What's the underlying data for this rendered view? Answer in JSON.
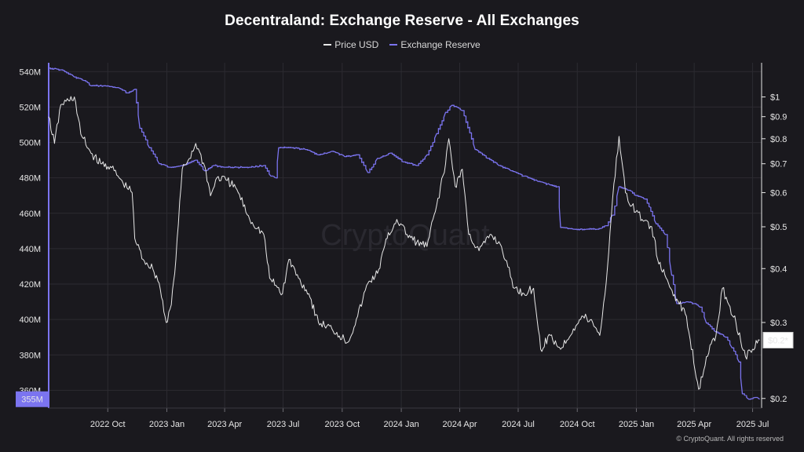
{
  "title": "Decentraland: Exchange Reserve - All Exchanges",
  "legend": [
    {
      "label": "Price USD",
      "color": "#e8e8e8"
    },
    {
      "label": "Exchange Reserve",
      "color": "#7b74f0"
    }
  ],
  "watermark": "CryptoQuant",
  "footer": "© CryptoQuant. All rights reserved",
  "colors": {
    "background": "#1a191e",
    "price": "#e8e8e8",
    "reserve": "#7b74f0",
    "grid": "#2c2b31"
  },
  "chart_data": {
    "type": "line",
    "title": "Decentraland: Exchange Reserve - All Exchanges",
    "x_range": [
      "2022-07-01",
      "2025-07-15"
    ],
    "x_ticks": [
      {
        "label": "2022 Oct",
        "date": "2022-10-01"
      },
      {
        "label": "2023 Jan",
        "date": "2023-01-01"
      },
      {
        "label": "2023 Apr",
        "date": "2023-04-01"
      },
      {
        "label": "2023 Jul",
        "date": "2023-07-01"
      },
      {
        "label": "2023 Oct",
        "date": "2023-10-01"
      },
      {
        "label": "2024 Jan",
        "date": "2024-01-01"
      },
      {
        "label": "2024 Apr",
        "date": "2024-04-01"
      },
      {
        "label": "2024 Jul",
        "date": "2024-07-01"
      },
      {
        "label": "2024 Oct",
        "date": "2024-10-01"
      },
      {
        "label": "2025 Jan",
        "date": "2025-01-01"
      },
      {
        "label": "2025 Apr",
        "date": "2025-04-01"
      },
      {
        "label": "2025 Jul",
        "date": "2025-07-01"
      }
    ],
    "y_left": {
      "scale": "linear",
      "range": [
        350,
        545
      ],
      "unit": "M",
      "ticks": [
        {
          "label": "360M",
          "value": 360
        },
        {
          "label": "380M",
          "value": 380
        },
        {
          "label": "400M",
          "value": 400
        },
        {
          "label": "420M",
          "value": 420
        },
        {
          "label": "440M",
          "value": 440
        },
        {
          "label": "460M",
          "value": 460
        },
        {
          "label": "480M",
          "value": 480
        },
        {
          "label": "500M",
          "value": 500
        },
        {
          "label": "520M",
          "value": 520
        },
        {
          "label": "540M",
          "value": 540
        }
      ],
      "current_label": "355M",
      "current_value": 355
    },
    "y_right": {
      "scale": "log",
      "range": [
        0.19,
        1.2
      ],
      "ticks": [
        {
          "label": "$1",
          "value": 1.0
        },
        {
          "label": "$0.9",
          "value": 0.9
        },
        {
          "label": "$0.8",
          "value": 0.8
        },
        {
          "label": "$0.7",
          "value": 0.7
        },
        {
          "label": "$0.6",
          "value": 0.6
        },
        {
          "label": "$0.5",
          "value": 0.5
        },
        {
          "label": "$0.4",
          "value": 0.4
        },
        {
          "label": "$0.3",
          "value": 0.3
        },
        {
          "label": "$0.2",
          "value": 0.2
        }
      ],
      "current_label": "$0.2*",
      "current_value": 0.273
    },
    "grid": true,
    "legend_position": "top-center",
    "series": [
      {
        "name": "Exchange Reserve",
        "axis": "left",
        "color": "#7b74f0",
        "points": [
          [
            "2022-07-01",
            542
          ],
          [
            "2022-07-20",
            541
          ],
          [
            "2022-08-10",
            537
          ],
          [
            "2022-08-25",
            535
          ],
          [
            "2022-09-05",
            532
          ],
          [
            "2022-09-25",
            532
          ],
          [
            "2022-10-15",
            531
          ],
          [
            "2022-11-01",
            528
          ],
          [
            "2022-11-12",
            530
          ],
          [
            "2022-11-20",
            508
          ],
          [
            "2022-12-05",
            497
          ],
          [
            "2022-12-20",
            488
          ],
          [
            "2023-01-05",
            486
          ],
          [
            "2023-01-25",
            487
          ],
          [
            "2023-02-15",
            490
          ],
          [
            "2023-03-01",
            484
          ],
          [
            "2023-03-15",
            487
          ],
          [
            "2023-04-01",
            486
          ],
          [
            "2023-04-20",
            486
          ],
          [
            "2023-05-10",
            486
          ],
          [
            "2023-06-01",
            487
          ],
          [
            "2023-06-12",
            481
          ],
          [
            "2023-06-20",
            480
          ],
          [
            "2023-06-24",
            497
          ],
          [
            "2023-07-15",
            497
          ],
          [
            "2023-08-05",
            496
          ],
          [
            "2023-08-25",
            493
          ],
          [
            "2023-09-15",
            495
          ],
          [
            "2023-10-05",
            492
          ],
          [
            "2023-10-25",
            493
          ],
          [
            "2023-11-10",
            483
          ],
          [
            "2023-11-25",
            491
          ],
          [
            "2023-12-15",
            494
          ],
          [
            "2024-01-05",
            489
          ],
          [
            "2024-01-25",
            487
          ],
          [
            "2024-02-10",
            493
          ],
          [
            "2024-02-25",
            505
          ],
          [
            "2024-03-10",
            517
          ],
          [
            "2024-03-20",
            521
          ],
          [
            "2024-04-05",
            518
          ],
          [
            "2024-04-25",
            496
          ],
          [
            "2024-05-15",
            491
          ],
          [
            "2024-06-01",
            487
          ],
          [
            "2024-06-20",
            484
          ],
          [
            "2024-07-10",
            481
          ],
          [
            "2024-08-01",
            478
          ],
          [
            "2024-08-20",
            476
          ],
          [
            "2024-09-01",
            475
          ],
          [
            "2024-09-05",
            452
          ],
          [
            "2024-09-25",
            451
          ],
          [
            "2024-10-15",
            451
          ],
          [
            "2024-11-01",
            451
          ],
          [
            "2024-11-15",
            453
          ],
          [
            "2024-11-25",
            459
          ],
          [
            "2024-12-05",
            475
          ],
          [
            "2024-12-20",
            473
          ],
          [
            "2025-01-01",
            470
          ],
          [
            "2025-01-15",
            468
          ],
          [
            "2025-02-01",
            454
          ],
          [
            "2025-02-15",
            448
          ],
          [
            "2025-02-25",
            425
          ],
          [
            "2025-03-05",
            409
          ],
          [
            "2025-03-20",
            410
          ],
          [
            "2025-04-01",
            409
          ],
          [
            "2025-04-10",
            407
          ],
          [
            "2025-04-20",
            398
          ],
          [
            "2025-05-05",
            393
          ],
          [
            "2025-05-20",
            390
          ],
          [
            "2025-05-30",
            384
          ],
          [
            "2025-06-10",
            376
          ],
          [
            "2025-06-15",
            358
          ],
          [
            "2025-06-25",
            355
          ],
          [
            "2025-07-05",
            356
          ],
          [
            "2025-07-12",
            355
          ]
        ]
      },
      {
        "name": "Price USD",
        "axis": "right",
        "color": "#e8e8e8",
        "points": [
          [
            "2022-07-01",
            0.9
          ],
          [
            "2022-07-10",
            0.78
          ],
          [
            "2022-07-20",
            0.96
          ],
          [
            "2022-08-01",
            0.98
          ],
          [
            "2022-08-10",
            1.0
          ],
          [
            "2022-08-20",
            0.82
          ],
          [
            "2022-09-05",
            0.74
          ],
          [
            "2022-09-20",
            0.7
          ],
          [
            "2022-10-05",
            0.69
          ],
          [
            "2022-10-25",
            0.63
          ],
          [
            "2022-11-08",
            0.6
          ],
          [
            "2022-11-12",
            0.47
          ],
          [
            "2022-11-25",
            0.42
          ],
          [
            "2022-12-10",
            0.4
          ],
          [
            "2022-12-20",
            0.37
          ],
          [
            "2022-12-31",
            0.3
          ],
          [
            "2023-01-08",
            0.33
          ],
          [
            "2023-01-15",
            0.42
          ],
          [
            "2023-01-25",
            0.68
          ],
          [
            "2023-02-05",
            0.72
          ],
          [
            "2023-02-15",
            0.78
          ],
          [
            "2023-03-01",
            0.69
          ],
          [
            "2023-03-10",
            0.59
          ],
          [
            "2023-03-20",
            0.65
          ],
          [
            "2023-04-05",
            0.64
          ],
          [
            "2023-04-20",
            0.61
          ],
          [
            "2023-05-10",
            0.52
          ],
          [
            "2023-06-01",
            0.48
          ],
          [
            "2023-06-10",
            0.38
          ],
          [
            "2023-06-30",
            0.35
          ],
          [
            "2023-07-10",
            0.42
          ],
          [
            "2023-07-25",
            0.38
          ],
          [
            "2023-08-10",
            0.35
          ],
          [
            "2023-08-25",
            0.3
          ],
          [
            "2023-09-15",
            0.29
          ],
          [
            "2023-10-10",
            0.27
          ],
          [
            "2023-10-25",
            0.31
          ],
          [
            "2023-11-10",
            0.37
          ],
          [
            "2023-11-25",
            0.39
          ],
          [
            "2023-12-10",
            0.47
          ],
          [
            "2023-12-25",
            0.52
          ],
          [
            "2024-01-10",
            0.48
          ],
          [
            "2024-01-25",
            0.46
          ],
          [
            "2024-02-10",
            0.45
          ],
          [
            "2024-02-25",
            0.56
          ],
          [
            "2024-03-10",
            0.7
          ],
          [
            "2024-03-15",
            0.8
          ],
          [
            "2024-03-25",
            0.62
          ],
          [
            "2024-04-05",
            0.68
          ],
          [
            "2024-04-15",
            0.48
          ],
          [
            "2024-05-01",
            0.44
          ],
          [
            "2024-05-20",
            0.48
          ],
          [
            "2024-06-05",
            0.45
          ],
          [
            "2024-06-25",
            0.36
          ],
          [
            "2024-07-10",
            0.35
          ],
          [
            "2024-07-25",
            0.36
          ],
          [
            "2024-08-05",
            0.26
          ],
          [
            "2024-08-20",
            0.28
          ],
          [
            "2024-09-05",
            0.26
          ],
          [
            "2024-09-25",
            0.29
          ],
          [
            "2024-10-10",
            0.31
          ],
          [
            "2024-10-25",
            0.3
          ],
          [
            "2024-11-05",
            0.28
          ],
          [
            "2024-11-15",
            0.37
          ],
          [
            "2024-11-25",
            0.58
          ],
          [
            "2024-12-05",
            0.81
          ],
          [
            "2024-12-15",
            0.6
          ],
          [
            "2024-12-25",
            0.56
          ],
          [
            "2025-01-10",
            0.52
          ],
          [
            "2025-01-25",
            0.5
          ],
          [
            "2025-02-05",
            0.41
          ],
          [
            "2025-02-20",
            0.37
          ],
          [
            "2025-03-05",
            0.34
          ],
          [
            "2025-03-20",
            0.31
          ],
          [
            "2025-04-08",
            0.21
          ],
          [
            "2025-04-20",
            0.25
          ],
          [
            "2025-05-05",
            0.28
          ],
          [
            "2025-05-15",
            0.36
          ],
          [
            "2025-05-25",
            0.33
          ],
          [
            "2025-06-05",
            0.3
          ],
          [
            "2025-06-20",
            0.25
          ],
          [
            "2025-07-01",
            0.26
          ],
          [
            "2025-07-12",
            0.273
          ]
        ]
      }
    ]
  }
}
